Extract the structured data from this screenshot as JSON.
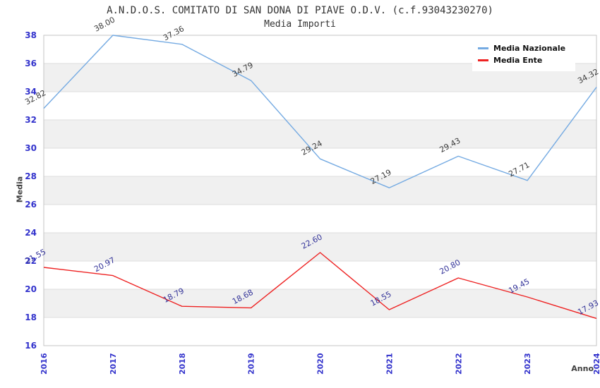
{
  "title": "A.N.D.O.S. COMITATO DI SAN DONA DI PIAVE O.D.V. (c.f.93043230270)",
  "subtitle": "Media Importi",
  "chart_data": {
    "type": "line",
    "categories": [
      "2016",
      "2017",
      "2018",
      "2019",
      "2020",
      "2021",
      "2022",
      "2023",
      "2024"
    ],
    "series": [
      {
        "name": "Media Nazionale",
        "color": "#74aae2",
        "label_color": "#3a3a3a",
        "values": [
          32.82,
          38.0,
          37.36,
          34.79,
          29.24,
          27.19,
          29.43,
          27.71,
          34.32
        ]
      },
      {
        "name": "Media Ente",
        "color": "#ee2222",
        "label_color": "#333399",
        "values": [
          21.55,
          20.97,
          18.79,
          18.68,
          22.6,
          18.55,
          20.8,
          19.45,
          17.93
        ]
      }
    ],
    "xlabel": "Anno",
    "ylabel": "Media",
    "ylim": [
      16,
      38
    ],
    "ytick_step": 2,
    "yticks": [
      16,
      18,
      20,
      22,
      24,
      26,
      28,
      30,
      32,
      34,
      36,
      38
    ],
    "grid": true,
    "band_color": "#f0f0f0",
    "gridline_color": "#dedede",
    "border_color": "#c6c6c6",
    "tick_label_color": "#3333cc",
    "legend_position": "top-right",
    "value_labels": "shown, rotated, 2 decimals"
  }
}
